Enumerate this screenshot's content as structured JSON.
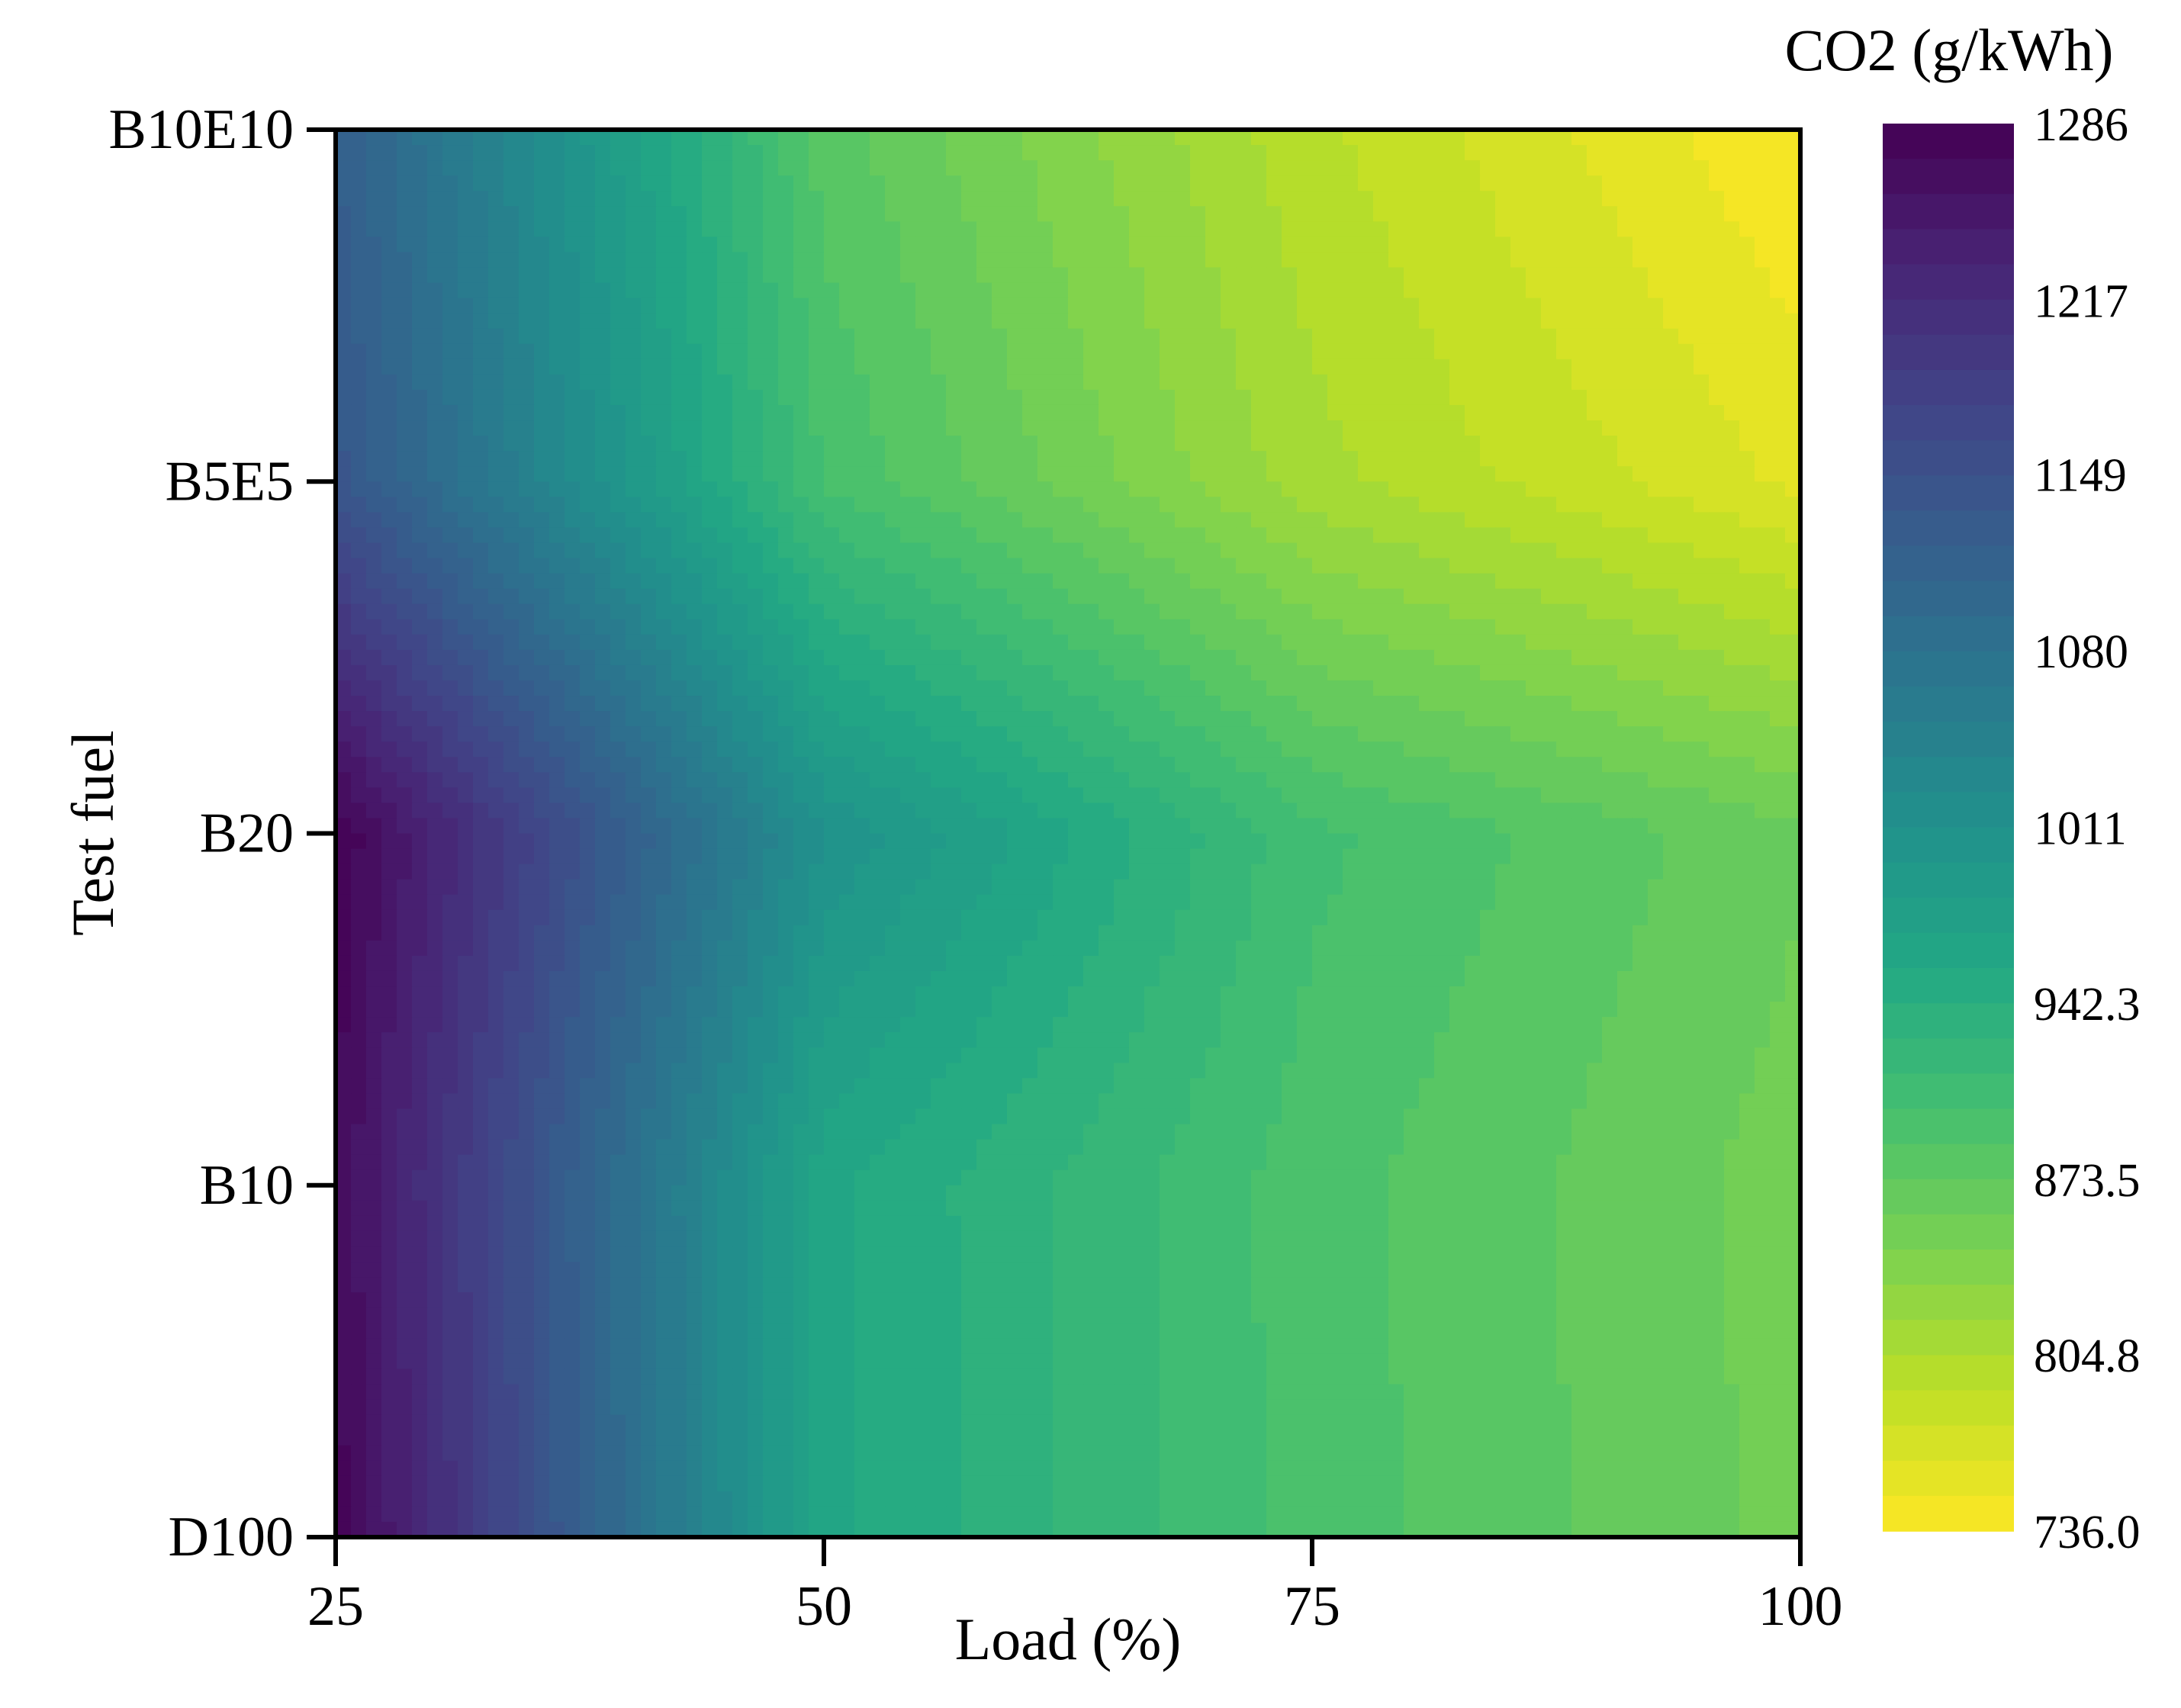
{
  "chart_data": {
    "type": "heatmap",
    "style": "filled-contour",
    "colormap": "viridis",
    "xlabel": "Load (%)",
    "ylabel": "Test fuel",
    "colorbar_label": "CO2 (g/kWh)",
    "x": [
      25,
      50,
      75,
      100
    ],
    "x_tick_labels": [
      "25",
      "50",
      "75",
      "100"
    ],
    "y_categories": [
      "D100",
      "B10",
      "B20",
      "B5E5",
      "B10E10"
    ],
    "z": [
      [
        1280,
        960,
        895,
        855
      ],
      [
        1270,
        960,
        893,
        853
      ],
      [
        1286,
        1010,
        905,
        862
      ],
      [
        1140,
        900,
        810,
        760
      ],
      [
        1120,
        880,
        795,
        736
      ]
    ],
    "clim": [
      736.0,
      1286
    ],
    "colorbar_ticks": [
      "736.0",
      "804.8",
      "873.5",
      "942.3",
      "1011",
      "1080",
      "1149",
      "1217",
      "1286"
    ],
    "colorbar_tick_values": [
      736.0,
      804.8,
      873.5,
      942.3,
      1011,
      1080,
      1149,
      1217,
      1286
    ],
    "legend": "right"
  }
}
